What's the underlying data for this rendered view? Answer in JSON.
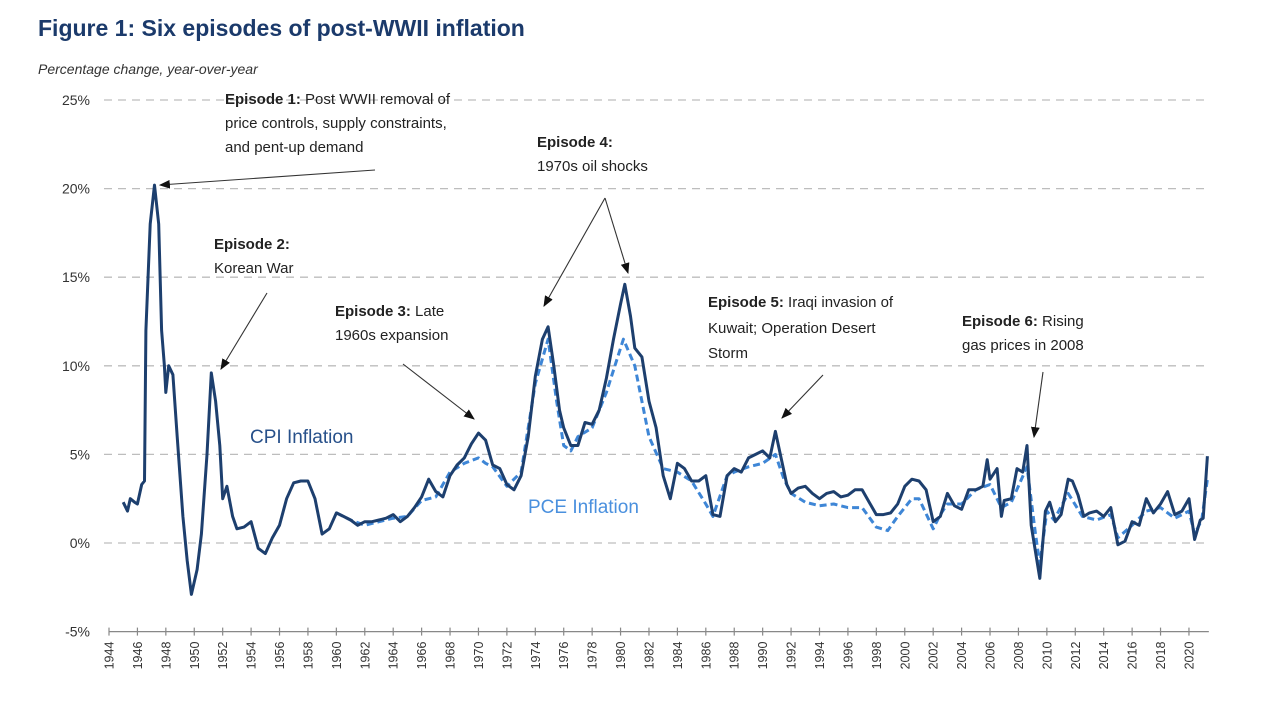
{
  "chart_data": {
    "type": "line",
    "title": "Figure 1: Six episodes of post-WWII inflation",
    "ylabel": "Percentage change, year-over-year",
    "xlabel": "",
    "xlim": [
      1944,
      2021.4
    ],
    "ylim": [
      -5,
      25
    ],
    "grid": "horizontal dashed",
    "y_ticks": [
      "25%",
      "20%",
      "15%",
      "10%",
      "5%",
      "0%",
      "-5%"
    ],
    "y_tick_values": [
      25,
      20,
      15,
      10,
      5,
      0,
      -5
    ],
    "x_ticks": [
      "1944",
      "1946",
      "1948",
      "1950",
      "1952",
      "1954",
      "1956",
      "1958",
      "1960",
      "1962",
      "1964",
      "1966",
      "1968",
      "1970",
      "1972",
      "1974",
      "1976",
      "1978",
      "1980",
      "1982",
      "1984",
      "1986",
      "1988",
      "1990",
      "1992",
      "1994",
      "1996",
      "1998",
      "2000",
      "2002",
      "2004",
      "2006",
      "2008",
      "2010",
      "2012",
      "2014",
      "2016",
      "2018",
      "2020"
    ],
    "series": [
      {
        "name": "CPI Inflation",
        "label": "CPI Inflation",
        "color": "#1d3f6e",
        "style": "solid",
        "points": [
          [
            1945.0,
            2.3
          ],
          [
            1945.3,
            1.8
          ],
          [
            1945.5,
            2.5
          ],
          [
            1945.8,
            2.3
          ],
          [
            1946.0,
            2.2
          ],
          [
            1946.3,
            3.3
          ],
          [
            1946.5,
            3.5
          ],
          [
            1946.6,
            12
          ],
          [
            1946.9,
            18
          ],
          [
            1947.2,
            20.2
          ],
          [
            1947.5,
            18
          ],
          [
            1947.7,
            12
          ],
          [
            1947.9,
            10
          ],
          [
            1948.0,
            8.5
          ],
          [
            1948.2,
            10
          ],
          [
            1948.5,
            9.5
          ],
          [
            1948.8,
            6
          ],
          [
            1949.2,
            1.5
          ],
          [
            1949.5,
            -1
          ],
          [
            1949.8,
            -2.9
          ],
          [
            1950.2,
            -1.5
          ],
          [
            1950.5,
            0.5
          ],
          [
            1950.9,
            5
          ],
          [
            1951.2,
            9.6
          ],
          [
            1951.5,
            8
          ],
          [
            1951.8,
            5.5
          ],
          [
            1952.0,
            2.5
          ],
          [
            1952.3,
            3.2
          ],
          [
            1952.7,
            1.5
          ],
          [
            1953.0,
            0.8
          ],
          [
            1953.5,
            0.9
          ],
          [
            1954.0,
            1.2
          ],
          [
            1954.5,
            -0.3
          ],
          [
            1955.0,
            -0.6
          ],
          [
            1955.5,
            0.3
          ],
          [
            1956.0,
            1.0
          ],
          [
            1956.5,
            2.5
          ],
          [
            1957.0,
            3.4
          ],
          [
            1957.5,
            3.5
          ],
          [
            1958.0,
            3.5
          ],
          [
            1958.5,
            2.5
          ],
          [
            1959.0,
            0.5
          ],
          [
            1959.5,
            0.8
          ],
          [
            1960.0,
            1.7
          ],
          [
            1960.5,
            1.5
          ],
          [
            1961.0,
            1.3
          ],
          [
            1961.5,
            1.0
          ],
          [
            1962.0,
            1.2
          ],
          [
            1962.5,
            1.2
          ],
          [
            1963.0,
            1.3
          ],
          [
            1963.5,
            1.4
          ],
          [
            1964.0,
            1.6
          ],
          [
            1964.5,
            1.2
          ],
          [
            1965.0,
            1.5
          ],
          [
            1965.5,
            2.0
          ],
          [
            1966.0,
            2.6
          ],
          [
            1966.5,
            3.6
          ],
          [
            1967.0,
            2.9
          ],
          [
            1967.5,
            2.6
          ],
          [
            1968.0,
            3.8
          ],
          [
            1968.5,
            4.4
          ],
          [
            1969.0,
            4.8
          ],
          [
            1969.5,
            5.6
          ],
          [
            1970.0,
            6.2
          ],
          [
            1970.5,
            5.8
          ],
          [
            1971.0,
            4.4
          ],
          [
            1971.5,
            4.2
          ],
          [
            1972.0,
            3.3
          ],
          [
            1972.5,
            3.0
          ],
          [
            1973.0,
            3.8
          ],
          [
            1973.5,
            6.0
          ],
          [
            1974.0,
            9.4
          ],
          [
            1974.5,
            11.5
          ],
          [
            1974.9,
            12.2
          ],
          [
            1975.3,
            10
          ],
          [
            1975.7,
            7.5
          ],
          [
            1976.0,
            6.5
          ],
          [
            1976.5,
            5.5
          ],
          [
            1977.0,
            5.5
          ],
          [
            1977.5,
            6.8
          ],
          [
            1978.0,
            6.7
          ],
          [
            1978.5,
            7.5
          ],
          [
            1979.0,
            9.3
          ],
          [
            1979.5,
            11.5
          ],
          [
            1980.0,
            13.5
          ],
          [
            1980.3,
            14.6
          ],
          [
            1980.7,
            12.8
          ],
          [
            1981.0,
            11
          ],
          [
            1981.5,
            10.5
          ],
          [
            1982.0,
            8
          ],
          [
            1982.5,
            6.5
          ],
          [
            1983.0,
            3.8
          ],
          [
            1983.5,
            2.5
          ],
          [
            1984.0,
            4.5
          ],
          [
            1984.5,
            4.2
          ],
          [
            1985.0,
            3.5
          ],
          [
            1985.5,
            3.5
          ],
          [
            1986.0,
            3.8
          ],
          [
            1986.5,
            1.6
          ],
          [
            1987.0,
            1.5
          ],
          [
            1987.5,
            3.8
          ],
          [
            1988.0,
            4.2
          ],
          [
            1988.5,
            4.0
          ],
          [
            1989.0,
            4.8
          ],
          [
            1989.5,
            5.0
          ],
          [
            1990.0,
            5.2
          ],
          [
            1990.5,
            4.8
          ],
          [
            1990.9,
            6.3
          ],
          [
            1991.3,
            4.8
          ],
          [
            1991.7,
            3.3
          ],
          [
            1992.0,
            2.8
          ],
          [
            1992.5,
            3.1
          ],
          [
            1993.0,
            3.2
          ],
          [
            1993.5,
            2.8
          ],
          [
            1994.0,
            2.5
          ],
          [
            1994.5,
            2.8
          ],
          [
            1995.0,
            2.9
          ],
          [
            1995.5,
            2.6
          ],
          [
            1996.0,
            2.7
          ],
          [
            1996.5,
            3.0
          ],
          [
            1997.0,
            3.0
          ],
          [
            1997.5,
            2.3
          ],
          [
            1998.0,
            1.6
          ],
          [
            1998.5,
            1.6
          ],
          [
            1999.0,
            1.7
          ],
          [
            1999.5,
            2.2
          ],
          [
            2000.0,
            3.2
          ],
          [
            2000.5,
            3.6
          ],
          [
            2001.0,
            3.5
          ],
          [
            2001.5,
            3.0
          ],
          [
            2002.0,
            1.2
          ],
          [
            2002.5,
            1.5
          ],
          [
            2003.0,
            2.8
          ],
          [
            2003.5,
            2.1
          ],
          [
            2004.0,
            1.9
          ],
          [
            2004.5,
            3.0
          ],
          [
            2005.0,
            3.0
          ],
          [
            2005.5,
            3.2
          ],
          [
            2005.8,
            4.7
          ],
          [
            2006.0,
            3.6
          ],
          [
            2006.5,
            4.2
          ],
          [
            2006.8,
            1.5
          ],
          [
            2007.0,
            2.4
          ],
          [
            2007.5,
            2.5
          ],
          [
            2007.9,
            4.2
          ],
          [
            2008.3,
            4.0
          ],
          [
            2008.6,
            5.5
          ],
          [
            2008.9,
            1.0
          ],
          [
            2009.2,
            -0.5
          ],
          [
            2009.5,
            -2.0
          ],
          [
            2009.9,
            1.8
          ],
          [
            2010.2,
            2.3
          ],
          [
            2010.6,
            1.2
          ],
          [
            2011.0,
            1.6
          ],
          [
            2011.5,
            3.6
          ],
          [
            2011.8,
            3.5
          ],
          [
            2012.2,
            2.7
          ],
          [
            2012.6,
            1.5
          ],
          [
            2013.0,
            1.7
          ],
          [
            2013.5,
            1.8
          ],
          [
            2014.0,
            1.5
          ],
          [
            2014.5,
            2.0
          ],
          [
            2015.0,
            -0.1
          ],
          [
            2015.5,
            0.1
          ],
          [
            2016.0,
            1.2
          ],
          [
            2016.5,
            1.0
          ],
          [
            2017.0,
            2.5
          ],
          [
            2017.5,
            1.7
          ],
          [
            2018.0,
            2.2
          ],
          [
            2018.5,
            2.9
          ],
          [
            2019.0,
            1.6
          ],
          [
            2019.5,
            1.8
          ],
          [
            2020.0,
            2.5
          ],
          [
            2020.4,
            0.2
          ],
          [
            2020.8,
            1.3
          ],
          [
            2021.0,
            1.4
          ],
          [
            2021.3,
            4.9
          ]
        ]
      },
      {
        "name": "PCE Inflation",
        "label": "PCE Inflation",
        "color": "#3e86d6",
        "style": "dashed",
        "points": [
          [
            1960,
            1.7
          ],
          [
            1961,
            1.3
          ],
          [
            1962,
            1.0
          ],
          [
            1963,
            1.2
          ],
          [
            1964,
            1.4
          ],
          [
            1965,
            1.5
          ],
          [
            1966,
            2.4
          ],
          [
            1967,
            2.6
          ],
          [
            1968,
            4.0
          ],
          [
            1969,
            4.5
          ],
          [
            1970,
            4.8
          ],
          [
            1970.5,
            4.5
          ],
          [
            1971,
            4.3
          ],
          [
            1972,
            3.2
          ],
          [
            1973,
            4.0
          ],
          [
            1974,
            9.0
          ],
          [
            1974.9,
            11.5
          ],
          [
            1975.5,
            8
          ],
          [
            1976,
            5.5
          ],
          [
            1976.5,
            5.2
          ],
          [
            1977,
            6.0
          ],
          [
            1978,
            6.5
          ],
          [
            1979,
            8.5
          ],
          [
            1980.2,
            11.5
          ],
          [
            1981,
            10
          ],
          [
            1982,
            6.0
          ],
          [
            1983,
            4.2
          ],
          [
            1984,
            4.0
          ],
          [
            1985,
            3.5
          ],
          [
            1986,
            2.2
          ],
          [
            1986.5,
            1.5
          ],
          [
            1987.5,
            3.8
          ],
          [
            1988,
            4.0
          ],
          [
            1989,
            4.3
          ],
          [
            1990,
            4.5
          ],
          [
            1990.9,
            5.0
          ],
          [
            1991.5,
            3.6
          ],
          [
            1992,
            2.8
          ],
          [
            1993,
            2.3
          ],
          [
            1994,
            2.1
          ],
          [
            1995,
            2.2
          ],
          [
            1996,
            2.0
          ],
          [
            1997,
            2.0
          ],
          [
            1998,
            0.9
          ],
          [
            1998.8,
            0.7
          ],
          [
            1999.5,
            1.5
          ],
          [
            2000.5,
            2.5
          ],
          [
            2001,
            2.5
          ],
          [
            2002,
            0.8
          ],
          [
            2002.5,
            1.6
          ],
          [
            2003,
            2.2
          ],
          [
            2004,
            2.2
          ],
          [
            2005,
            3.0
          ],
          [
            2006,
            3.3
          ],
          [
            2006.8,
            2.0
          ],
          [
            2007.5,
            2.3
          ],
          [
            2008.6,
            4.3
          ],
          [
            2009.2,
            0.5
          ],
          [
            2009.5,
            -1.2
          ],
          [
            2010,
            1.8
          ],
          [
            2010.5,
            1.3
          ],
          [
            2011.5,
            2.8
          ],
          [
            2012.5,
            1.5
          ],
          [
            2013.5,
            1.3
          ],
          [
            2014.5,
            1.6
          ],
          [
            2015,
            0.3
          ],
          [
            2016,
            1.0
          ],
          [
            2017,
            1.8
          ],
          [
            2018,
            2.0
          ],
          [
            2019,
            1.4
          ],
          [
            2020,
            1.8
          ],
          [
            2020.4,
            0.5
          ],
          [
            2020.9,
            1.3
          ],
          [
            2021.3,
            3.6
          ]
        ]
      }
    ],
    "annotations": [
      {
        "bold": "Episode 1:",
        "lines": [
          "Post WWII removal of",
          "price controls, supply constraints,",
          "and pent-up demand"
        ]
      },
      {
        "bold": "Episode 2:",
        "lines": [
          "Korean War"
        ]
      },
      {
        "bold": "Episode 3:",
        "lines": [
          "Late",
          "1960s expansion"
        ]
      },
      {
        "bold": "Episode 4:",
        "lines": [
          "1970s oil shocks"
        ]
      },
      {
        "bold": "Episode 5:",
        "lines": [
          "Iraqi invasion of",
          "Kuwait; Operation Desert",
          "Storm"
        ]
      },
      {
        "bold": "Episode 6:",
        "lines": [
          "Rising",
          "gas prices in 2008"
        ]
      }
    ]
  }
}
